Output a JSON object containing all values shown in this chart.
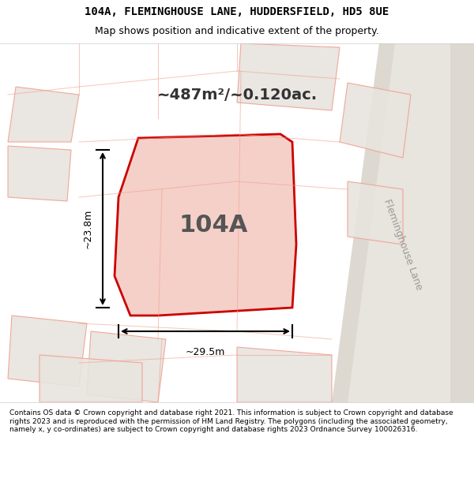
{
  "title_line1": "104A, FLEMINGHOUSE LANE, HUDDERSFIELD, HD5 8UE",
  "title_line2": "Map shows position and indicative extent of the property.",
  "area_label": "~487m²/~0.120ac.",
  "plot_label": "104A",
  "dim_width": "~29.5m",
  "dim_height": "~23.8m",
  "road_label": "Fleminghouse Lane",
  "footer_text": "Contains OS data © Crown copyright and database right 2021. This information is subject to Crown copyright and database rights 2023 and is reproduced with the permission of HM Land Registry. The polygons (including the associated geometry, namely x, y co-ordinates) are subject to Crown copyright and database rights 2023 Ordnance Survey 100026316.",
  "bg_color": "#f0ede8",
  "plot_fill": "#f5d0c8",
  "plot_edge": "#cc0000",
  "road_color": "#e8e0d8",
  "nearby_fill": "#e8e4de",
  "nearby_edge": "#f0a090",
  "title_bg": "#ffffff",
  "footer_bg": "#ffffff"
}
